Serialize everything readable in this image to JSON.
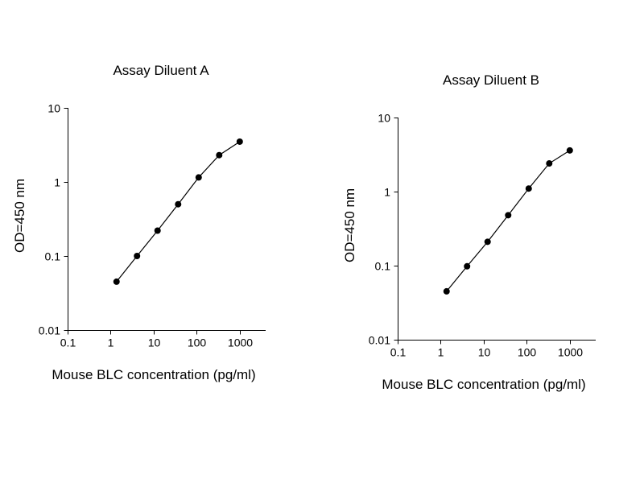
{
  "figure": {
    "background_color": "#ffffff",
    "foreground_color": "#000000"
  },
  "chart_data": [
    {
      "type": "line",
      "title": "Assay Diluent A",
      "xlabel": "Mouse BLC concentration (pg/ml)",
      "ylabel": "OD=450 nm",
      "xscale": "log",
      "yscale": "log",
      "xlim": [
        0.1,
        4000
      ],
      "ylim": [
        0.01,
        10
      ],
      "xticks": [
        0.1,
        1,
        10,
        100,
        1000
      ],
      "yticks": [
        0.01,
        0.1,
        1,
        10
      ],
      "x": [
        1.37,
        4.1,
        12.3,
        37,
        111,
        333,
        1000
      ],
      "y": [
        0.045,
        0.1,
        0.22,
        0.5,
        1.15,
        2.3,
        3.5
      ],
      "line_color": "#000000",
      "marker_color": "#000000",
      "marker": "circle",
      "grid": false,
      "legend": false
    },
    {
      "type": "line",
      "title": "Assay Diluent B",
      "xlabel": "Mouse BLC concentration (pg/ml)",
      "ylabel": "OD=450 nm",
      "xscale": "log",
      "yscale": "log",
      "xlim": [
        0.1,
        4000
      ],
      "ylim": [
        0.01,
        10
      ],
      "xticks": [
        0.1,
        1,
        10,
        100,
        1000
      ],
      "yticks": [
        0.01,
        0.1,
        1,
        10
      ],
      "x": [
        1.37,
        4.1,
        12.3,
        37,
        111,
        333,
        1000
      ],
      "y": [
        0.045,
        0.098,
        0.21,
        0.48,
        1.1,
        2.4,
        3.6
      ],
      "line_color": "#000000",
      "marker_color": "#000000",
      "marker": "circle",
      "grid": false,
      "legend": false
    }
  ]
}
